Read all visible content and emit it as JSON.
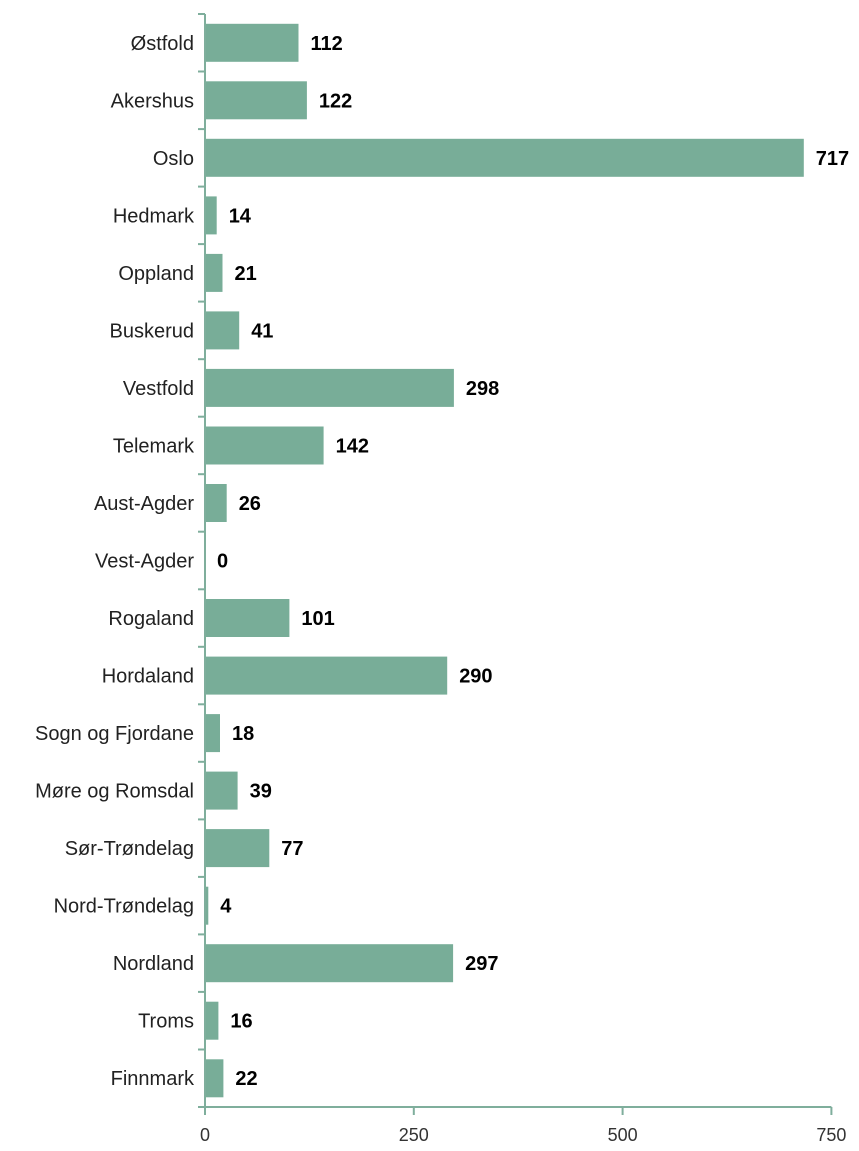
{
  "chart_data": {
    "type": "bar",
    "orientation": "horizontal",
    "title": "",
    "xlabel": "",
    "ylabel": "",
    "categories": [
      "Østfold",
      "Akershus",
      "Oslo",
      "Hedmark",
      "Oppland",
      "Buskerud",
      "Vestfold",
      "Telemark",
      "Aust-Agder",
      "Vest-Agder",
      "Rogaland",
      "Hordaland",
      "Sogn og Fjordane",
      "Møre og Romsdal",
      "Sør-Trøndelag",
      "Nord-Trøndelag",
      "Nordland",
      "Troms",
      "Finnmark"
    ],
    "values": [
      112,
      122,
      717,
      14,
      21,
      41,
      298,
      142,
      26,
      0,
      101,
      290,
      18,
      39,
      77,
      4,
      297,
      16,
      22
    ],
    "xticks": [
      0,
      250,
      500,
      750
    ],
    "xlim": [
      0,
      750
    ],
    "grid": false,
    "bar_color": "#78ad98",
    "axis_color": "#7fae9c"
  }
}
